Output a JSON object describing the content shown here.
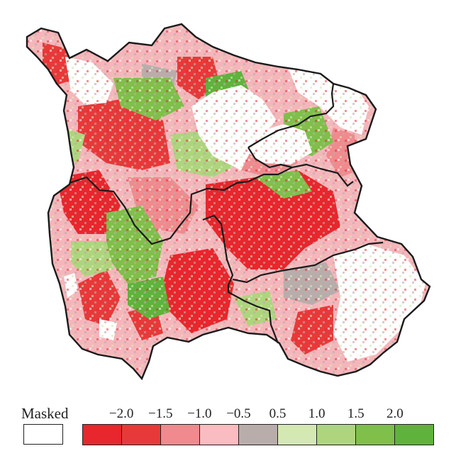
{
  "legend": {
    "masked_label": "Masked",
    "masked_color": "#ffffff",
    "classes": [
      {
        "color": "#e8262d"
      },
      {
        "color": "#e8393a"
      },
      {
        "color": "#f08a8e"
      },
      {
        "color": "#f9bcc0"
      },
      {
        "color": "#b9adab"
      },
      {
        "color": "#d4e8b3"
      },
      {
        "color": "#aed57e"
      },
      {
        "color": "#7fbf4a"
      },
      {
        "color": "#5fb33c"
      }
    ],
    "ticks": [
      "−2.0",
      "−1.5",
      "−1.0",
      "−0.5",
      "0.5",
      "1.0",
      "1.5",
      "2.0"
    ]
  },
  "map": {
    "outline_color": "#1a1a1a",
    "masked_regions": [
      "north-central basin",
      "eastern lobe",
      "south-eastern basin"
    ]
  }
}
